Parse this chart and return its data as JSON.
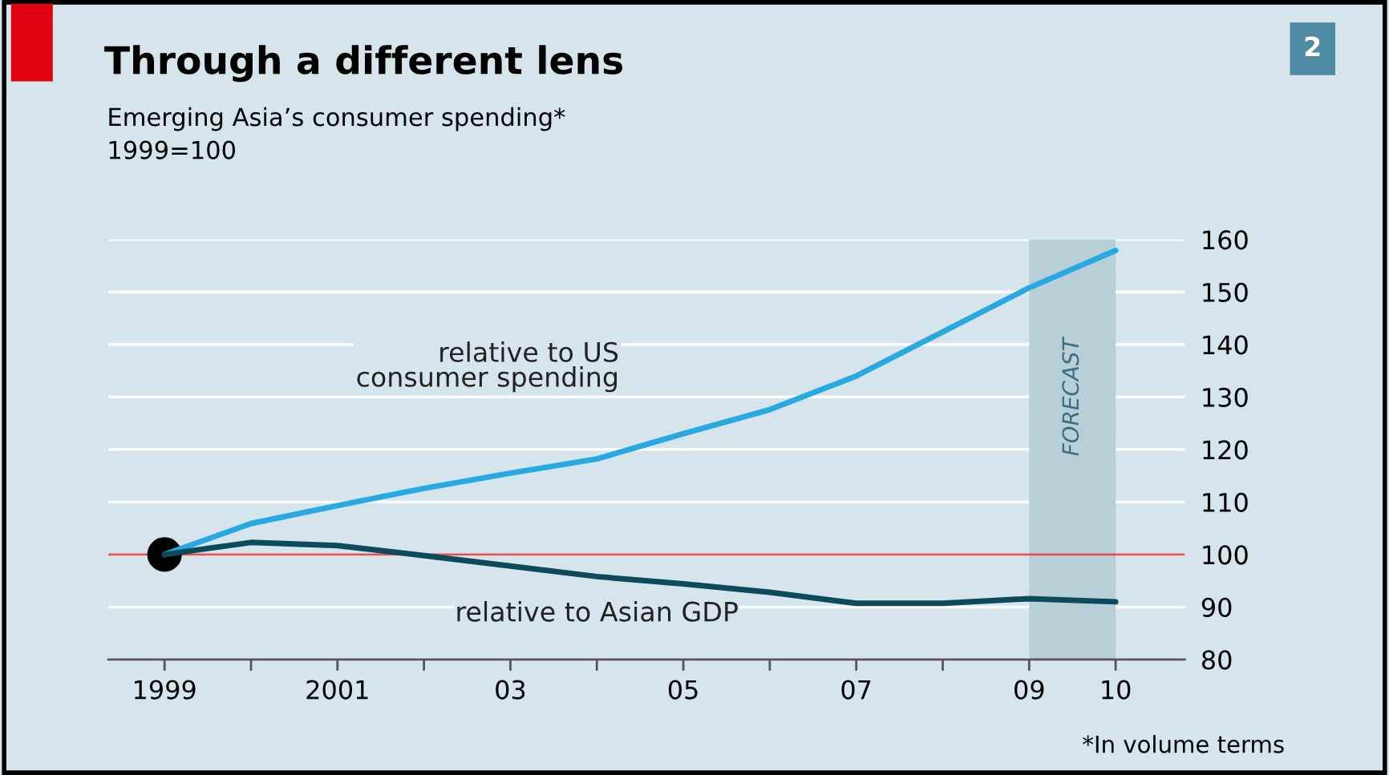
{
  "chart_data": {
    "type": "line",
    "title": "Through a different lens",
    "subtitle": "Emerging Asia’s consumer spending*\n1999=100",
    "x": [
      1999,
      2000,
      2001,
      2002,
      2003,
      2004,
      2005,
      2006,
      2007,
      2008,
      2009,
      2010
    ],
    "series": [
      {
        "name": "relative to US\nconsumer spending",
        "color": "#29a9e1",
        "values": [
          100,
          105.9,
          109.3,
          112.6,
          115.5,
          118.2,
          123,
          127.6,
          134,
          142.4,
          150.8,
          157.9
        ]
      },
      {
        "name": "relative to Asian GDP",
        "color": "#0d4a5c",
        "values": [
          100,
          102.3,
          101.7,
          99.8,
          97.8,
          95.8,
          94.4,
          92.8,
          90.7,
          90.7,
          91.6,
          91
        ]
      },
      {
        "type": "scatter",
        "color": "#000000",
        "x": [
          1999
        ],
        "values": [
          100
        ]
      }
    ],
    "xlim": [
      1998.35,
      2010.8
    ],
    "xticks": [
      {
        "value": 1999,
        "label": "1999"
      },
      {
        "value": 2000,
        "label": null
      },
      {
        "value": 2001,
        "label": "2001"
      },
      {
        "value": 2002,
        "label": null
      },
      {
        "value": 2003,
        "label": "03"
      },
      {
        "value": 2004,
        "label": null
      },
      {
        "value": 2005,
        "label": "05"
      },
      {
        "value": 2006,
        "label": null
      },
      {
        "value": 2007,
        "label": "07"
      },
      {
        "value": 2008,
        "label": null
      },
      {
        "value": 2009,
        "label": "09"
      },
      {
        "value": 2010,
        "label": "10"
      }
    ],
    "ylim": [
      80,
      160
    ],
    "yticks": [
      80,
      90,
      100,
      110,
      120,
      130,
      140,
      150,
      160
    ],
    "grid": "y",
    "ref_lines": [
      {
        "axis": "y",
        "value": 100,
        "color": "#e0524f"
      }
    ],
    "bands": [
      {
        "axis": "x",
        "from": 2009,
        "to": 2010,
        "label": "FORECAST",
        "color": "#b9cfd8"
      }
    ],
    "annotations": [
      "2",
      "*In volume terms"
    ]
  }
}
